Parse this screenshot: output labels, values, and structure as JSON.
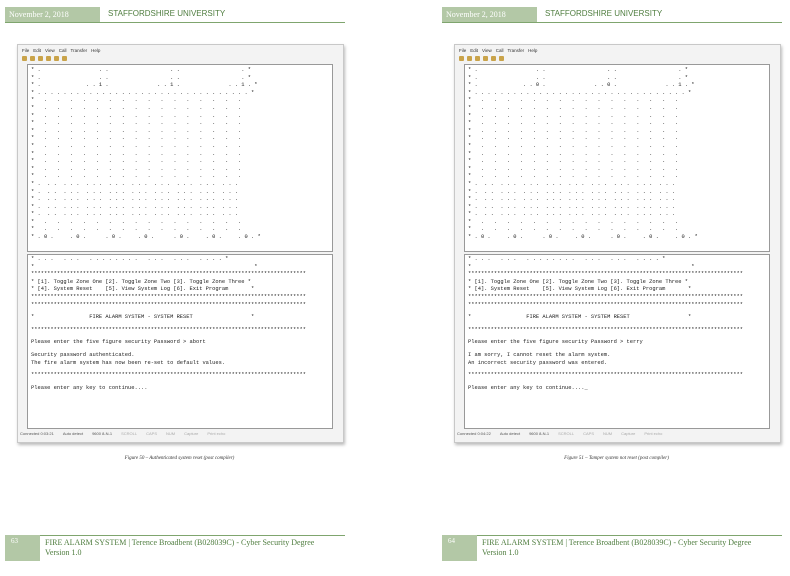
{
  "pages": [
    {
      "header": {
        "date": "November 2, 2018",
        "org": "STAFFORDSHIRE UNIVERSITY"
      },
      "window": {
        "menu": [
          "File",
          "Edit",
          "View",
          "Call",
          "Transfer",
          "Help"
        ],
        "grid_rows": [
          "* .                  . .                   . .                   . *",
          "* .                  . .                   . .                   . *",
          "* .              . . 1 .               . . 1 .               . . 1 . *",
          "* . . . . . . . . . . . . . . . . . . . . . . . . . . . . . . . . . *",
          "*   .   .   .   .   .   .   .   .   .   .   .   .   .   .   .   .",
          "*   .   .   .   .   .   .   .   .   .   .   .   .   .   .   .   .",
          "*   .   .   .   .   .   .   .   .   .   .   .   .   .   .   .   .",
          "*   .   .   .   .   .   .   .   .   .   .   .   .   .   .   .   .",
          "*   .   .   .   .   .   .   .   .   .   .   .   .   .   .   .   .",
          "*   .   .   .   .   .   .   .   .   .   .   .   .   .   .   .   .",
          "*   .   .   .   .   .   .   .   .   .   .   .   .   .   .   .   .",
          "*   .   .   .   .   .   .   .   .   .   .   .   .   .   .   .   .",
          "*   .   .   .   .   .   .   .   .   .   .   .   .   .   .   .   .",
          "*   .   .   .   .   .   .   .   .   .   .   .   .   .   .   .   .",
          "*   .   .   .   .   .   .   .   .   .   .   .   .   .   .   .   .",
          "* .  . .  . . .  . . .  . . .  . . .  . . .  . . .  . . .  . . .",
          "* .  . .  . . .  . . .  . . .  . . .  . . .  . . .  . . .  . . .",
          "* .  . .  . . .  . . .  . . .  . . .  . . .  . . .  . . .  . . .",
          "* .  . .  . . .  . . .  . . .  . . .  . . .  . . .  . . .  . . .",
          "* .  . .  . . .  . . .  . . .  . . .  . . .  . . .  . . .  . . .",
          "*   .   .   .   .   .   .   .   .   .   .   .   .   .   .   .   .",
          "*   .   .   .   .   .   .   .   .   .   .   .   .   .   .   .   .",
          "* . 0 .     . 0 .      . 0 .     . 0 .      . 0 .     . 0 .     . 0 . *"
        ],
        "panel_rows": [
          "* . . .   . . .   . . . . . . . .   . . .   . . .   . . . . *",
          "*                                                                    *"
        ],
        "separator": "*************************************************************************************",
        "menu_rows": [
          "* [1]. Toggle Zone One [2]. Toggle Zone Two [3]. Toggle Zone Three *",
          "* [4]. System Reset    [5]. View System Log [6]. Exit Program       *"
        ],
        "title": "*                 FIRE ALARM SYSTEM - SYSTEM RESET                  *",
        "prompt": "Please enter the five figure security Password > abort",
        "response": [
          "Security password authenticated.",
          "The fire alarm system has now been re-set to default values."
        ],
        "continue": "Please enter any key to continue....",
        "status": [
          "Connected 0:03:21",
          "Auto detect",
          "9600 8-N-1",
          "SCROLL",
          "CAPS",
          "NUM",
          "Capture",
          "Print echo"
        ]
      },
      "caption": "Figure 50 – Authenticated system reset (post compiler)",
      "footer": {
        "page": "63",
        "title": "FIRE ALARM SYSTEM | Terence Broadbent (B028039C) - Cyber Security Degree",
        "version": "Version 1.0"
      }
    },
    {
      "header": {
        "date": "November 2, 2018",
        "org": "STAFFORDSHIRE UNIVERSITY"
      },
      "window": {
        "menu": [
          "File",
          "Edit",
          "View",
          "Call",
          "Transfer",
          "Help"
        ],
        "grid_rows": [
          "* .                  . .                   . .                   . *",
          "* .                  . .                   . .                   . *",
          "* .              . . 0 .               . . 0 .               . . 1 . *",
          "* . . . . . . . . . . . . . . . . . . . . . . . . . . . . . . . . . *",
          "*   .   .   .   .   .   .   .   .   .   .   .   .   .   .   .   .",
          "*   .   .   .   .   .   .   .   .   .   .   .   .   .   .   .   .",
          "*   .   .   .   .   .   .   .   .   .   .   .   .   .   .   .   .",
          "*   .   .   .   .   .   .   .   .   .   .   .   .   .   .   .   .",
          "*   .   .   .   .   .   .   .   .   .   .   .   .   .   .   .   .",
          "*   .   .   .   .   .   .   .   .   .   .   .   .   .   .   .   .",
          "*   .   .   .   .   .   .   .   .   .   .   .   .   .   .   .   .",
          "*   .   .   .   .   .   .   .   .   .   .   .   .   .   .   .   .",
          "*   .   .   .   .   .   .   .   .   .   .   .   .   .   .   .   .",
          "*   .   .   .   .   .   .   .   .   .   .   .   .   .   .   .   .",
          "*   .   .   .   .   .   .   .   .   .   .   .   .   .   .   .   .",
          "* .  . .  . . .  . . .  . . .  . . .  . . .  . . .  . . .  . . .",
          "* .  . .  . . .  . . .  . . .  . . .  . . .  . . .  . . .  . . .",
          "* .  . .  . . .  . . .  . . .  . . .  . . .  . . .  . . .  . . .",
          "* .  . .  . . .  . . .  . . .  . . .  . . .  . . .  . . .  . . .",
          "* .  . .  . . .  . . .  . . .  . . .  . . .  . . .  . . .  . . .",
          "*   .   .   .   .   .   .   .   .   .   .   .   .   .   .   .   .",
          "*   .   .   .   .   .   .   .   .   .   .   .   .   .   .   .   .",
          "* . 0 .     . 0 .      . 0 .     . 0 .      . 0 .     . 0 .     . 0 . *"
        ],
        "panel_rows": [
          "* . . .   . . .   . . . . . . . .   . . .   . . .   . . . . *",
          "*                                                                    *"
        ],
        "separator": "*************************************************************************************",
        "menu_rows": [
          "* [1]. Toggle Zone One [2]. Toggle Zone Two [3]. Toggle Zone Three *",
          "* [4]. System Reset    [5]. View System Log [6]. Exit Program       *"
        ],
        "title": "*                 FIRE ALARM SYSTEM - SYSTEM RESET                  *",
        "prompt": "Please enter the five figure security Password > terry",
        "response": [
          "I am sorry, I cannot reset the alarm system.",
          "An incorrect security password was entered."
        ],
        "continue": "Please enter any key to continue...._",
        "status": [
          "Connected 0:04:22",
          "Auto detect",
          "9600 8-N-1",
          "SCROLL",
          "CAPS",
          "NUM",
          "Capture",
          "Print echo"
        ]
      },
      "caption": "Figure 51 – Tamper system not reset (post compiler)",
      "footer": {
        "page": "64",
        "title": "FIRE ALARM SYSTEM | Terence Broadbent (B028039C) - Cyber Security Degree",
        "version": "Version 1.0"
      }
    }
  ]
}
